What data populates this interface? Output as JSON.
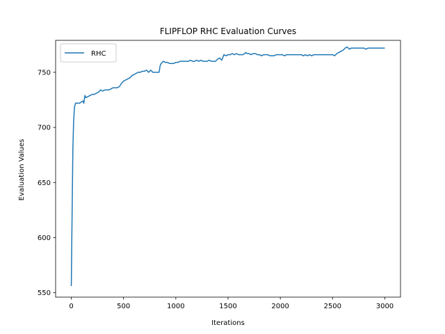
{
  "chart_data": {
    "type": "line",
    "title": "FLIPFLOP RHC Evaluation Curves",
    "xlabel": "Iterations",
    "ylabel": "Evaluation Values",
    "xlim": [
      -150,
      3150
    ],
    "ylim": [
      546,
      779
    ],
    "xticks": [
      0,
      500,
      1000,
      1500,
      2000,
      2500,
      3000
    ],
    "xtick_labels": [
      "0",
      "500",
      "1000",
      "1500",
      "2000",
      "2500",
      "3000"
    ],
    "yticks": [
      550,
      600,
      650,
      700,
      750
    ],
    "ytick_labels": [
      "550",
      "600",
      "650",
      "700",
      "750"
    ],
    "grid": false,
    "legend": {
      "position": "top-left",
      "entries": [
        "RHC"
      ]
    },
    "series": [
      {
        "name": "RHC",
        "color": "#1f77b4",
        "points": [
          [
            0,
            556
          ],
          [
            5,
            600
          ],
          [
            10,
            640
          ],
          [
            15,
            680
          ],
          [
            22,
            705
          ],
          [
            30,
            718
          ],
          [
            40,
            722
          ],
          [
            60,
            722
          ],
          [
            80,
            722
          ],
          [
            95,
            723
          ],
          [
            110,
            724
          ],
          [
            120,
            722
          ],
          [
            130,
            729
          ],
          [
            140,
            727
          ],
          [
            160,
            728
          ],
          [
            180,
            729
          ],
          [
            200,
            730
          ],
          [
            220,
            730
          ],
          [
            240,
            731
          ],
          [
            260,
            732
          ],
          [
            280,
            734
          ],
          [
            300,
            733
          ],
          [
            320,
            734
          ],
          [
            340,
            734
          ],
          [
            360,
            734
          ],
          [
            380,
            735
          ],
          [
            400,
            736
          ],
          [
            420,
            736
          ],
          [
            440,
            736
          ],
          [
            460,
            737
          ],
          [
            480,
            740
          ],
          [
            500,
            742
          ],
          [
            520,
            743
          ],
          [
            540,
            744
          ],
          [
            560,
            745
          ],
          [
            580,
            747
          ],
          [
            600,
            748
          ],
          [
            620,
            749
          ],
          [
            640,
            750
          ],
          [
            660,
            750
          ],
          [
            680,
            751
          ],
          [
            700,
            751
          ],
          [
            720,
            752
          ],
          [
            740,
            750
          ],
          [
            760,
            752
          ],
          [
            780,
            750
          ],
          [
            800,
            750
          ],
          [
            820,
            750
          ],
          [
            840,
            750
          ],
          [
            850,
            756
          ],
          [
            860,
            758
          ],
          [
            870,
            759
          ],
          [
            880,
            760
          ],
          [
            900,
            759
          ],
          [
            920,
            759
          ],
          [
            940,
            758
          ],
          [
            960,
            758
          ],
          [
            980,
            758
          ],
          [
            1000,
            759
          ],
          [
            1020,
            759
          ],
          [
            1040,
            760
          ],
          [
            1060,
            760
          ],
          [
            1080,
            760
          ],
          [
            1100,
            760
          ],
          [
            1120,
            760
          ],
          [
            1140,
            761
          ],
          [
            1160,
            760
          ],
          [
            1180,
            760
          ],
          [
            1200,
            761
          ],
          [
            1220,
            760
          ],
          [
            1240,
            761
          ],
          [
            1260,
            760
          ],
          [
            1280,
            760
          ],
          [
            1300,
            760
          ],
          [
            1320,
            761
          ],
          [
            1340,
            760
          ],
          [
            1360,
            760
          ],
          [
            1380,
            760
          ],
          [
            1400,
            762
          ],
          [
            1420,
            763
          ],
          [
            1440,
            761
          ],
          [
            1460,
            766
          ],
          [
            1480,
            765
          ],
          [
            1500,
            766
          ],
          [
            1520,
            766
          ],
          [
            1540,
            767
          ],
          [
            1560,
            766
          ],
          [
            1580,
            767
          ],
          [
            1600,
            766
          ],
          [
            1620,
            766
          ],
          [
            1640,
            766
          ],
          [
            1660,
            767
          ],
          [
            1670,
            768
          ],
          [
            1680,
            767
          ],
          [
            1700,
            767
          ],
          [
            1720,
            766
          ],
          [
            1740,
            767
          ],
          [
            1760,
            767
          ],
          [
            1780,
            766
          ],
          [
            1800,
            766
          ],
          [
            1820,
            765
          ],
          [
            1840,
            766
          ],
          [
            1860,
            766
          ],
          [
            1880,
            766
          ],
          [
            1900,
            765
          ],
          [
            1920,
            765
          ],
          [
            1940,
            765
          ],
          [
            1960,
            766
          ],
          [
            1980,
            766
          ],
          [
            2000,
            766
          ],
          [
            2020,
            766
          ],
          [
            2040,
            765
          ],
          [
            2060,
            766
          ],
          [
            2080,
            766
          ],
          [
            2100,
            766
          ],
          [
            2120,
            766
          ],
          [
            2140,
            766
          ],
          [
            2160,
            766
          ],
          [
            2180,
            766
          ],
          [
            2200,
            766
          ],
          [
            2220,
            765
          ],
          [
            2240,
            766
          ],
          [
            2260,
            765
          ],
          [
            2280,
            766
          ],
          [
            2300,
            765
          ],
          [
            2320,
            766
          ],
          [
            2340,
            766
          ],
          [
            2360,
            766
          ],
          [
            2380,
            766
          ],
          [
            2400,
            766
          ],
          [
            2420,
            766
          ],
          [
            2440,
            766
          ],
          [
            2460,
            766
          ],
          [
            2480,
            766
          ],
          [
            2500,
            766
          ],
          [
            2520,
            765
          ],
          [
            2540,
            767
          ],
          [
            2560,
            768
          ],
          [
            2580,
            769
          ],
          [
            2600,
            770
          ],
          [
            2620,
            772
          ],
          [
            2640,
            773
          ],
          [
            2660,
            771
          ],
          [
            2680,
            772
          ],
          [
            2700,
            772
          ],
          [
            2720,
            772
          ],
          [
            2740,
            772
          ],
          [
            2760,
            772
          ],
          [
            2780,
            772
          ],
          [
            2800,
            772
          ],
          [
            2820,
            771
          ],
          [
            2840,
            772
          ],
          [
            2860,
            772
          ],
          [
            2880,
            772
          ],
          [
            2900,
            772
          ],
          [
            2920,
            772
          ],
          [
            2940,
            772
          ],
          [
            2960,
            772
          ],
          [
            2980,
            772
          ],
          [
            3000,
            772
          ]
        ]
      }
    ]
  }
}
